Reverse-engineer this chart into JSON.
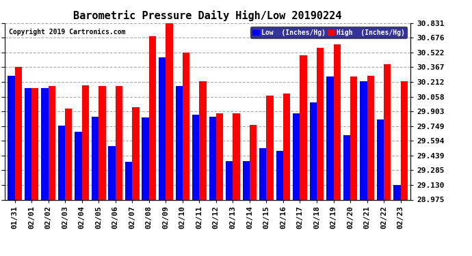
{
  "title": "Barometric Pressure Daily High/Low 20190224",
  "copyright": "Copyright 2019 Cartronics.com",
  "dates": [
    "01/31",
    "02/01",
    "02/02",
    "02/03",
    "02/04",
    "02/05",
    "02/06",
    "02/07",
    "02/08",
    "02/09",
    "02/10",
    "02/11",
    "02/12",
    "02/13",
    "02/14",
    "02/15",
    "02/16",
    "02/17",
    "02/18",
    "02/19",
    "02/20",
    "02/21",
    "02/22",
    "02/23"
  ],
  "low_values": [
    30.28,
    30.15,
    30.15,
    29.75,
    29.69,
    29.85,
    29.54,
    29.37,
    29.84,
    30.47,
    30.17,
    29.87,
    29.85,
    29.38,
    29.38,
    29.52,
    29.49,
    29.88,
    30.0,
    30.27,
    29.65,
    30.22,
    29.82,
    29.13
  ],
  "high_values": [
    30.37,
    30.15,
    30.17,
    29.93,
    30.18,
    30.17,
    30.17,
    29.95,
    30.69,
    30.83,
    30.52,
    30.22,
    29.88,
    29.88,
    29.76,
    30.07,
    30.09,
    30.49,
    30.57,
    30.61,
    30.27,
    30.28,
    30.4,
    30.22
  ],
  "ymin": 28.975,
  "ymax": 30.831,
  "yticks": [
    28.975,
    29.13,
    29.285,
    29.439,
    29.594,
    29.749,
    29.903,
    30.058,
    30.212,
    30.367,
    30.522,
    30.676,
    30.831
  ],
  "low_color": "#0000ff",
  "high_color": "#ff0000",
  "bg_color": "#ffffff",
  "grid_color": "#aaaaaa",
  "title_fontsize": 11,
  "tick_fontsize": 8,
  "legend_low_label": "Low  (Inches/Hg)",
  "legend_high_label": "High  (Inches/Hg)",
  "legend_bg": "#000080"
}
